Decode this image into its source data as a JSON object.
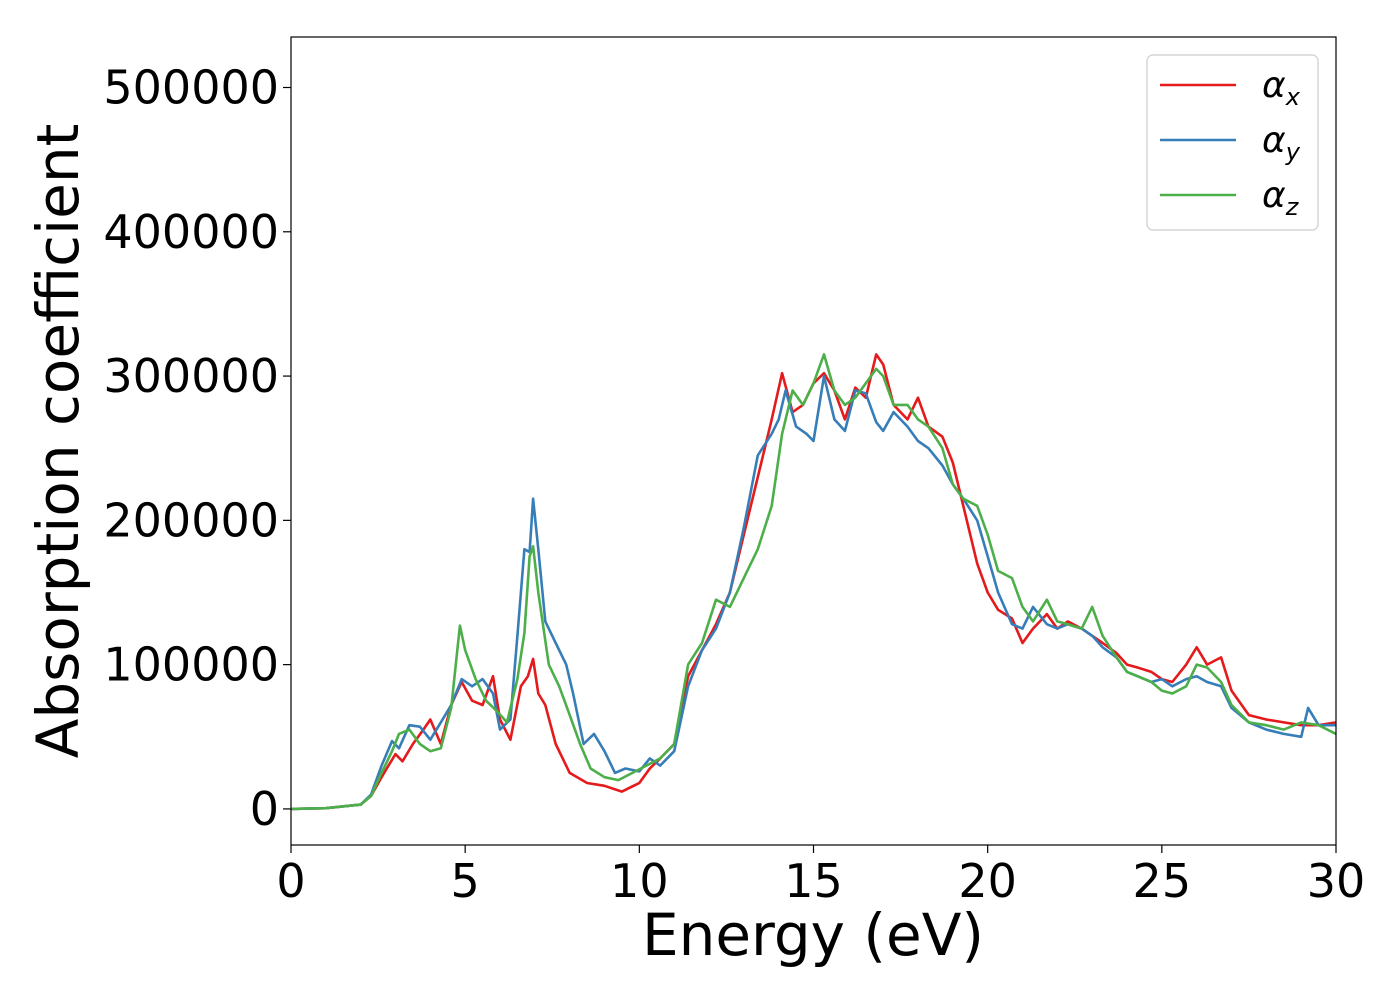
{
  "chart_data": {
    "type": "line",
    "title": "",
    "xlabel": "Energy (eV)",
    "ylabel": "Absorption coefficient",
    "xlim": [
      0,
      30
    ],
    "ylim": [
      -25000,
      535000
    ],
    "xticks": [
      0,
      5,
      10,
      15,
      20,
      25,
      30
    ],
    "yticks": [
      0,
      100000,
      200000,
      300000,
      400000,
      500000
    ],
    "grid": false,
    "legend_position": "top-right",
    "series": [
      {
        "name": "α",
        "subscript": "x",
        "color": "#e41a1c",
        "x": [
          0,
          1,
          2,
          2.3,
          2.6,
          2.8,
          3.0,
          3.2,
          3.5,
          3.8,
          4.0,
          4.3,
          4.6,
          4.9,
          5.2,
          5.5,
          5.8,
          6.0,
          6.3,
          6.6,
          6.8,
          6.95,
          7.1,
          7.3,
          7.6,
          8.0,
          8.5,
          9.0,
          9.5,
          10.0,
          10.3,
          10.6,
          11.0,
          11.4,
          11.8,
          12.2,
          12.6,
          13.0,
          13.4,
          13.8,
          14.1,
          14.4,
          14.7,
          15.0,
          15.3,
          15.6,
          15.9,
          16.2,
          16.5,
          16.8,
          17.0,
          17.3,
          17.7,
          18.0,
          18.3,
          18.7,
          19.0,
          19.3,
          19.7,
          20.0,
          20.3,
          20.7,
          21.0,
          21.3,
          21.7,
          22.0,
          22.3,
          22.7,
          23.0,
          23.3,
          23.7,
          24.0,
          24.3,
          24.7,
          25.0,
          25.3,
          25.7,
          26.0,
          26.3,
          26.7,
          27.0,
          27.5,
          28.0,
          28.5,
          29.0,
          29.5,
          30.0
        ],
        "values": [
          0,
          500,
          3000,
          9000,
          22000,
          30000,
          38000,
          33000,
          45000,
          55000,
          62000,
          45000,
          72000,
          88000,
          75000,
          72000,
          92000,
          62000,
          48000,
          85000,
          92000,
          104000,
          80000,
          72000,
          45000,
          25000,
          18000,
          16000,
          12000,
          18000,
          28000,
          35000,
          45000,
          92000,
          110000,
          128000,
          150000,
          190000,
          230000,
          270000,
          302000,
          275000,
          280000,
          295000,
          302000,
          290000,
          270000,
          292000,
          285000,
          315000,
          308000,
          280000,
          270000,
          285000,
          265000,
          258000,
          240000,
          210000,
          170000,
          150000,
          138000,
          132000,
          115000,
          125000,
          135000,
          125000,
          130000,
          125000,
          120000,
          115000,
          108000,
          100000,
          98000,
          95000,
          90000,
          88000,
          100000,
          112000,
          100000,
          105000,
          82000,
          65000,
          62000,
          60000,
          58000,
          58000,
          60000
        ]
      },
      {
        "name": "α",
        "subscript": "y",
        "color": "#377eb8",
        "x": [
          0,
          1,
          2,
          2.3,
          2.6,
          2.9,
          3.1,
          3.4,
          3.7,
          4.0,
          4.3,
          4.6,
          4.9,
          5.2,
          5.5,
          5.8,
          6.0,
          6.3,
          6.5,
          6.7,
          6.85,
          6.95,
          7.1,
          7.3,
          7.6,
          7.9,
          8.1,
          8.4,
          8.7,
          9.0,
          9.3,
          9.6,
          10.0,
          10.3,
          10.6,
          11.0,
          11.4,
          11.8,
          12.2,
          12.6,
          13.0,
          13.4,
          13.8,
          14.0,
          14.2,
          14.5,
          14.8,
          15.0,
          15.3,
          15.6,
          15.9,
          16.2,
          16.5,
          16.8,
          17.0,
          17.3,
          17.7,
          18.0,
          18.3,
          18.7,
          19.0,
          19.3,
          19.7,
          20.0,
          20.3,
          20.7,
          21.0,
          21.3,
          21.7,
          22.0,
          22.3,
          22.7,
          23.0,
          23.3,
          23.7,
          24.0,
          24.3,
          24.7,
          25.0,
          25.3,
          25.7,
          26.0,
          26.3,
          26.7,
          27.0,
          27.5,
          28.0,
          28.5,
          29.0,
          29.2,
          29.5,
          30.0
        ],
        "values": [
          0,
          500,
          3000,
          10000,
          30000,
          47000,
          42000,
          58000,
          57000,
          48000,
          60000,
          72000,
          90000,
          85000,
          90000,
          80000,
          55000,
          62000,
          120000,
          180000,
          178000,
          215000,
          180000,
          130000,
          115000,
          100000,
          80000,
          45000,
          52000,
          40000,
          25000,
          28000,
          26000,
          35000,
          30000,
          40000,
          85000,
          110000,
          125000,
          150000,
          195000,
          245000,
          260000,
          270000,
          290000,
          265000,
          260000,
          255000,
          300000,
          270000,
          262000,
          290000,
          288000,
          268000,
          262000,
          275000,
          265000,
          255000,
          250000,
          238000,
          225000,
          215000,
          200000,
          175000,
          150000,
          128000,
          125000,
          140000,
          128000,
          125000,
          128000,
          125000,
          120000,
          112000,
          105000,
          95000,
          92000,
          88000,
          90000,
          85000,
          90000,
          92000,
          88000,
          85000,
          70000,
          60000,
          55000,
          52000,
          50000,
          70000,
          58000,
          58000
        ]
      },
      {
        "name": "α",
        "subscript": "z",
        "color": "#4daf4a",
        "x": [
          0,
          1,
          2,
          2.3,
          2.6,
          2.9,
          3.1,
          3.4,
          3.7,
          4.0,
          4.3,
          4.6,
          4.85,
          5.0,
          5.3,
          5.6,
          5.9,
          6.2,
          6.5,
          6.7,
          6.85,
          6.95,
          7.1,
          7.4,
          7.7,
          8.0,
          8.3,
          8.6,
          9.0,
          9.4,
          9.8,
          10.2,
          10.6,
          11.0,
          11.4,
          11.8,
          12.2,
          12.6,
          13.0,
          13.4,
          13.8,
          14.1,
          14.4,
          14.7,
          15.0,
          15.3,
          15.6,
          15.9,
          16.2,
          16.5,
          16.8,
          17.0,
          17.3,
          17.7,
          18.0,
          18.3,
          18.7,
          19.0,
          19.3,
          19.7,
          20.0,
          20.3,
          20.7,
          21.0,
          21.3,
          21.7,
          22.0,
          22.3,
          22.7,
          23.0,
          23.3,
          23.7,
          24.0,
          24.3,
          24.7,
          25.0,
          25.3,
          25.7,
          26.0,
          26.3,
          26.7,
          27.0,
          27.5,
          28.0,
          28.5,
          29.0,
          29.5,
          30.0
        ],
        "values": [
          0,
          500,
          3000,
          9000,
          25000,
          40000,
          52000,
          55000,
          45000,
          40000,
          42000,
          70000,
          127000,
          110000,
          90000,
          75000,
          68000,
          60000,
          90000,
          122000,
          175000,
          182000,
          150000,
          100000,
          85000,
          65000,
          45000,
          28000,
          22000,
          20000,
          25000,
          30000,
          35000,
          45000,
          100000,
          115000,
          145000,
          140000,
          160000,
          180000,
          210000,
          260000,
          290000,
          280000,
          295000,
          315000,
          290000,
          280000,
          285000,
          295000,
          305000,
          300000,
          280000,
          280000,
          270000,
          265000,
          250000,
          225000,
          215000,
          210000,
          190000,
          165000,
          160000,
          140000,
          130000,
          145000,
          130000,
          128000,
          125000,
          140000,
          120000,
          105000,
          95000,
          92000,
          88000,
          82000,
          80000,
          85000,
          100000,
          98000,
          88000,
          72000,
          60000,
          58000,
          55000,
          60000,
          58000,
          52000
        ]
      }
    ]
  }
}
